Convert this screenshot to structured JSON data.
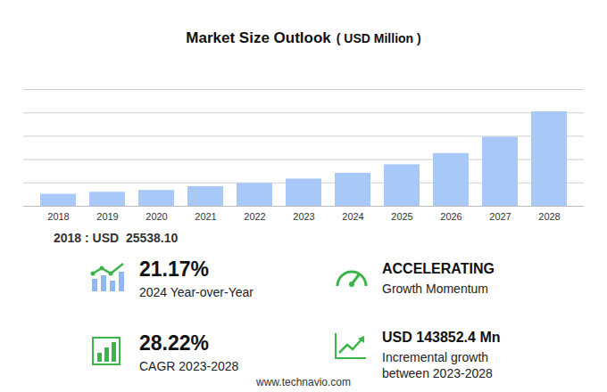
{
  "chart_data": {
    "type": "bar",
    "title": "Market Size Outlook",
    "subtitle": "( USD Million )",
    "categories": [
      "2018",
      "2019",
      "2020",
      "2021",
      "2022",
      "2023",
      "2024",
      "2025",
      "2026",
      "2027",
      "2028"
    ],
    "values": [
      25538.1,
      30000,
      34000,
      42000,
      49000,
      58343,
      70694,
      89000,
      113000,
      148000,
      202195
    ],
    "color": "#a8c8f8",
    "ylim": [
      0,
      250000
    ],
    "yticks": [
      0,
      50000,
      100000,
      150000,
      200000,
      250000
    ],
    "grid": true,
    "tick_labels": "x",
    "annotations": [
      {
        "text": "2018 : USD  25538.10"
      },
      {
        "value": "21.17%",
        "label": "2024 Year-over-Year"
      },
      {
        "value": "ACCELERATING",
        "label": "Growth Momentum"
      },
      {
        "value": "28.22%",
        "label": "CAGR 2023-2028"
      },
      {
        "value": "USD  143852.4 Mn",
        "label": "Incremental growth\nbetween 2023-2028"
      },
      {
        "text": "www.technavio.com"
      }
    ]
  }
}
